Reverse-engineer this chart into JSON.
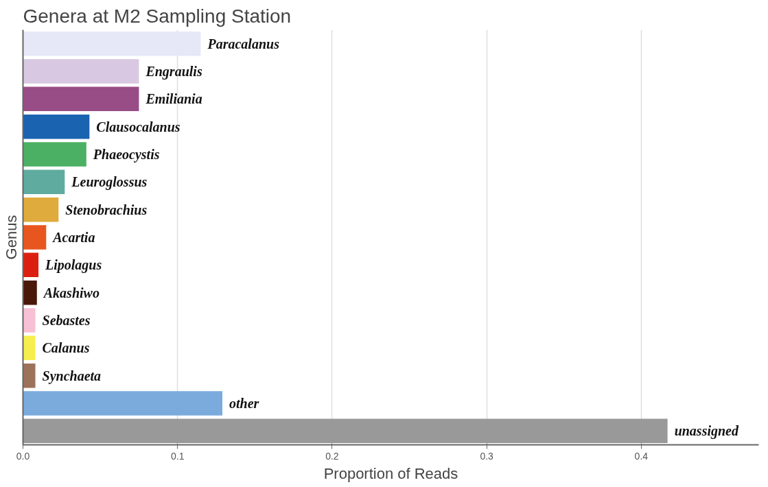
{
  "chart_data": {
    "type": "bar",
    "orientation": "horizontal",
    "title": "Genera at M2 Sampling Station",
    "xlabel": "Proportion of Reads",
    "ylabel": "Genus",
    "categories": [
      "Paracalanus",
      "Engraulis",
      "Emiliania",
      "Clausocalanus",
      "Phaeocystis",
      "Leuroglossus",
      "Stenobrachius",
      "Acartia",
      "Lipolagus",
      "Akashiwo",
      "Sebastes",
      "Calanus",
      "Synchaeta",
      "other",
      "unassigned"
    ],
    "values": [
      0.115,
      0.075,
      0.075,
      0.043,
      0.041,
      0.027,
      0.023,
      0.015,
      0.01,
      0.009,
      0.008,
      0.008,
      0.008,
      0.129,
      0.417
    ],
    "colors": [
      "#e6e8f8",
      "#d8c8e2",
      "#984d86",
      "#1a63b0",
      "#4cb064",
      "#5faba0",
      "#dfab3c",
      "#e8561f",
      "#dc2010",
      "#4a1808",
      "#f8c0d4",
      "#f6ee4e",
      "#9c725a",
      "#7aabdc",
      "#999999"
    ],
    "xlim": [
      0,
      0.476
    ],
    "xticks": [
      {
        "value": 0,
        "label": "0.0"
      },
      0.1,
      0.2,
      0.3,
      0.4
    ],
    "grid": "x",
    "tick_labels": "x"
  }
}
